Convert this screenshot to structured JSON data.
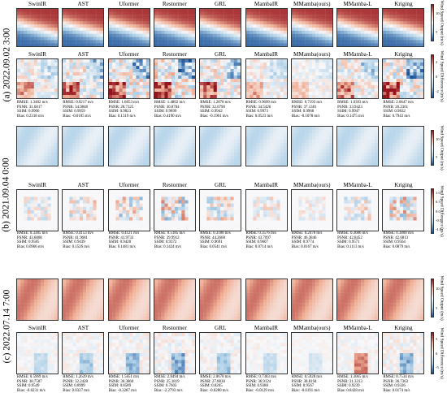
{
  "figure": {
    "methods": [
      "SwinIR",
      "AST",
      "Uformer",
      "Restormer",
      "GRL",
      "MambaIR",
      "MMamba(ours)",
      "MMamba-L",
      "Kriging"
    ],
    "panels": [
      {
        "label": "(a) 2022.09.02  3:00",
        "output_colorbar": {
          "label": "Wind Speed Output (m/s)",
          "ticks": [
            "10",
            "5"
          ]
        },
        "diff_colorbar": {
          "label": "Wind Speed Difference (m/s)",
          "ticks": [
            "2",
            "0",
            "-2"
          ]
        },
        "metrics": [
          [
            "RMSE: 1.3482 m/s",
            "PSNR: 31.6817",
            "SSIM: 0.9906",
            "Bias: 0.2318 m/s"
          ],
          [
            "RMSE: 0.9217 m/s",
            "PSNR: 34.9848",
            "SSIM: 0.9959",
            "Bias: -0.0105 m/s"
          ],
          [
            "RMSE: 1.8053 m/s",
            "PSNR: 28.7325",
            "SSIM: 0.9823",
            "Bias: 0.1319 m/s"
          ],
          [
            "RMSE: 1.4802 m/s",
            "PSNR: 30.8704",
            "SSIM: 0.9899",
            "Bias: 0.4190 m/s"
          ],
          [
            "RMSE: 1.2878 m/s",
            "PSNR: 32.0790",
            "SSIM: 0.9942",
            "Bias: -0.1901 m/s"
          ],
          [
            "RMSE: 0.9699 m/s",
            "PSNR: 34.5426",
            "SSIM: 0.9973",
            "Bias: 0.0523 m/s"
          ],
          [
            "RMSE: 0.7193 m/s",
            "PSNR: 37.1381",
            "SSIM: 0.9968",
            "Bias: -0.1078 m/s"
          ],
          [
            "RMSE: 1.0393 m/s",
            "PSNR: 33.9423",
            "SSIM: 0.9947",
            "Bias: 0.1475 m/s"
          ],
          [
            "RMSE: 2.0647 m/s",
            "PSNR: 26.2361",
            "SSIM: 0.9832",
            "Bias: 0.7943 m/s"
          ]
        ]
      },
      {
        "label": "(b) 2021.09.04  0:00",
        "output_colorbar": {
          "label": "Wind Speed Output (m/s)",
          "ticks": [
            "10",
            "5"
          ]
        },
        "diff_colorbar": {
          "label": "Wind Speed Difference (m/s)",
          "ticks": [
            "1.0",
            "0.5",
            "0.0",
            "-0.5",
            "-1.0"
          ]
        },
        "metrics": [
          [
            "RMSE: 0.3385 m/s",
            "PSNR: 43.6808",
            "SSIM: 0.9585",
            "Bias: 0.0966 m/s"
          ],
          [
            "RMSE: 0.4153 m/s",
            "PSNR: 41.9681",
            "SSIM: 0.9439",
            "Bias: 0.1526 m/s"
          ],
          [
            "RMSE: 0.4121 m/s",
            "PSNR: 41.9733",
            "SSIM: 0.9428",
            "Bias: 0.1481 m/s"
          ],
          [
            "RMSE: 0.5185 m/s",
            "PSNR: 39.9912",
            "SSIM: 0.9372",
            "Bias: 0.1424 m/s"
          ],
          [
            "RMSE: 0.3188 m/s",
            "PSNR: 44.2668",
            "SSIM: 0.9691",
            "Bias: 0.0541 m/s"
          ],
          [
            "RMSE: 0.3576 m/s",
            "PSNR: 43.7097",
            "SSIM: 0.9607",
            "Bias: 0.0714 m/s"
          ],
          [
            "RMSE: 0.2478 m/s",
            "PSNR: 46.3846",
            "SSIM: 0.9774",
            "Bias: 0.0167 m/s"
          ],
          [
            "RMSE: 0.3686 m/s",
            "PSNR: 42.8452",
            "SSIM: 0.9571",
            "Bias: 0.1113 m/s"
          ],
          [
            "RMSE: 0.3800 m/s",
            "PSNR: 42.6813",
            "SSIM: 0.9564",
            "Bias: 0.0879 m/s"
          ]
        ]
      },
      {
        "label": "(c) 2022.07.14  7:00",
        "output_colorbar": {
          "label": "Wind Speed Output (m/s)",
          "ticks": [
            "10",
            "5"
          ]
        },
        "diff_colorbar": {
          "label": "Wind Speed Difference (m/s)",
          "ticks": [
            "5",
            "0",
            "-5"
          ]
        },
        "metrics": [
          [
            "RMSE: 0.5969 m/s",
            "PSNR: 38.7587",
            "SSIM: 0.9549",
            "Bias: -0.0231 m/s"
          ],
          [
            "RMSE: 1.2639 m/s",
            "PSNR: 32.2428",
            "SSIM: 0.8999",
            "Bias: 0.0327 m/s"
          ],
          [
            "RMSE: 1.5651 m/s",
            "PSNR: 30.3860",
            "SSIM: 0.8589",
            "Bias: -0.3287 m/s"
          ],
          [
            "RMSE: 2.8494 m/s",
            "PSNR: 25.1819",
            "SSIM: 0.7603",
            "Bias: -2.2793 m/s"
          ],
          [
            "RMSE: 2.0678 m/s",
            "PSNR: 27.8830",
            "SSIM: 0.8265",
            "Bias: -0.0280 m/s"
          ],
          [
            "RMSE: 0.7383 m/s",
            "PSNR: 36.9124",
            "SSIM: 0.9388",
            "Bias: -0.0129 m/s"
          ],
          [
            "RMSE: 0.5928 m/s",
            "PSNR: 38.8194",
            "SSIM: 0.9567",
            "Bias: -0.0191 m/s"
          ],
          [
            "RMSE: 1.3065 m/s",
            "PSNR: 31.3313",
            "SSIM: 0.9239",
            "Bias: 0.8428 m/s"
          ],
          [
            "RMSE: 0.7534 m/s",
            "PSNR: 36.7363",
            "SSIM: 0.9326",
            "Bias: 0.0174 m/s"
          ]
        ]
      }
    ]
  }
}
